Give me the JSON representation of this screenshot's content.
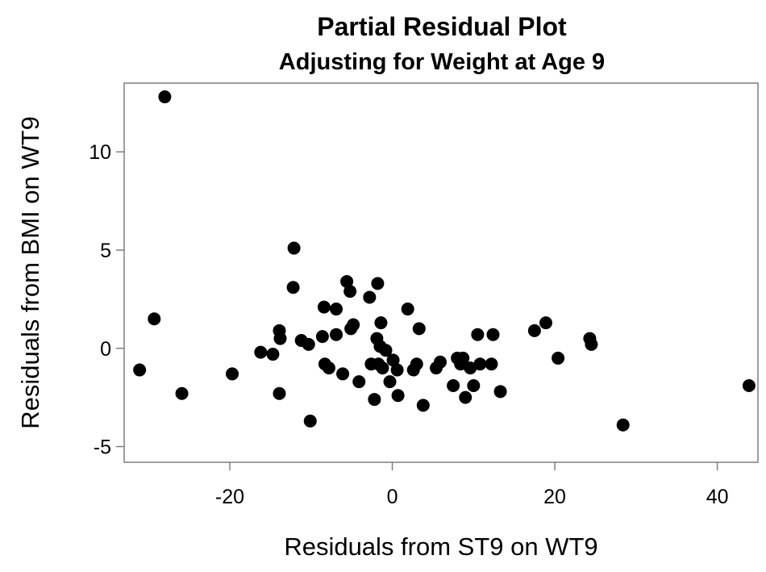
{
  "chart_data": {
    "type": "scatter",
    "title": "Partial Residual Plot",
    "subtitle": "Adjusting for Weight at Age 9",
    "xlabel": "Residuals from ST9 on WT9",
    "ylabel": "Residuals from BMI on WT9",
    "xlim": [
      -33,
      45
    ],
    "ylim": [
      -5.8,
      13.5
    ],
    "xticks": [
      -20,
      0,
      20,
      40
    ],
    "yticks": [
      -5,
      0,
      5,
      10
    ],
    "xtick_labels": [
      "-20",
      "0",
      "20",
      "40"
    ],
    "ytick_labels": [
      "-5",
      "0",
      "5",
      "10"
    ],
    "grid": false,
    "legend": "none",
    "marker_color": "#000000",
    "points": [
      {
        "x": -28,
        "y": 12.8
      },
      {
        "x": -31.1,
        "y": -1.1
      },
      {
        "x": -29.3,
        "y": 1.5
      },
      {
        "x": -25.9,
        "y": -2.3
      },
      {
        "x": -19.7,
        "y": -1.3
      },
      {
        "x": -16.2,
        "y": -0.2
      },
      {
        "x": -14.7,
        "y": -0.3
      },
      {
        "x": -13.9,
        "y": 0.9
      },
      {
        "x": -13.8,
        "y": 0.5
      },
      {
        "x": -13.9,
        "y": -2.3
      },
      {
        "x": -12.1,
        "y": 5.1
      },
      {
        "x": -12.2,
        "y": 3.1
      },
      {
        "x": -11.2,
        "y": 0.4
      },
      {
        "x": -10.3,
        "y": 0.2
      },
      {
        "x": -10.1,
        "y": -3.7
      },
      {
        "x": -8.4,
        "y": 2.1
      },
      {
        "x": -8.6,
        "y": 0.6
      },
      {
        "x": -8.3,
        "y": -0.8
      },
      {
        "x": -7.8,
        "y": -1.0
      },
      {
        "x": -6.9,
        "y": 2.0
      },
      {
        "x": -6.9,
        "y": 0.7
      },
      {
        "x": -6.1,
        "y": -1.3
      },
      {
        "x": -5.6,
        "y": 3.4
      },
      {
        "x": -5.2,
        "y": 2.9
      },
      {
        "x": -5.1,
        "y": 1.0
      },
      {
        "x": -4.8,
        "y": 1.2
      },
      {
        "x": -4.1,
        "y": -1.7
      },
      {
        "x": -2.8,
        "y": 2.6
      },
      {
        "x": -2.6,
        "y": -0.8
      },
      {
        "x": -2.2,
        "y": -2.6
      },
      {
        "x": -1.8,
        "y": 3.3
      },
      {
        "x": -1.9,
        "y": 0.5
      },
      {
        "x": -1.7,
        "y": -0.8
      },
      {
        "x": -1.4,
        "y": 1.3
      },
      {
        "x": -1.5,
        "y": 0.1
      },
      {
        "x": -1.2,
        "y": -1.0
      },
      {
        "x": -0.8,
        "y": -0.1
      },
      {
        "x": -0.3,
        "y": -1.7
      },
      {
        "x": 0.1,
        "y": -0.6
      },
      {
        "x": 0.6,
        "y": -1.1
      },
      {
        "x": 0.7,
        "y": -2.4
      },
      {
        "x": 1.9,
        "y": 2.0
      },
      {
        "x": 2.6,
        "y": -1.1
      },
      {
        "x": 3.0,
        "y": -0.8
      },
      {
        "x": 3.3,
        "y": 1.0
      },
      {
        "x": 3.8,
        "y": -2.9
      },
      {
        "x": 5.4,
        "y": -1.0
      },
      {
        "x": 5.9,
        "y": -0.7
      },
      {
        "x": 7.5,
        "y": -1.9
      },
      {
        "x": 8.0,
        "y": -0.5
      },
      {
        "x": 8.4,
        "y": -0.8
      },
      {
        "x": 8.7,
        "y": -0.5
      },
      {
        "x": 9.0,
        "y": -2.5
      },
      {
        "x": 9.6,
        "y": -1.0
      },
      {
        "x": 10.0,
        "y": -1.9
      },
      {
        "x": 10.5,
        "y": 0.7
      },
      {
        "x": 10.8,
        "y": -0.8
      },
      {
        "x": 12.2,
        "y": -0.8
      },
      {
        "x": 12.4,
        "y": 0.7
      },
      {
        "x": 13.3,
        "y": -2.2
      },
      {
        "x": 17.5,
        "y": 0.9
      },
      {
        "x": 18.9,
        "y": 1.3
      },
      {
        "x": 20.4,
        "y": -0.5
      },
      {
        "x": 24.3,
        "y": 0.5
      },
      {
        "x": 24.5,
        "y": 0.2
      },
      {
        "x": 28.4,
        "y": -3.9
      },
      {
        "x": 43.9,
        "y": -1.9
      }
    ]
  }
}
